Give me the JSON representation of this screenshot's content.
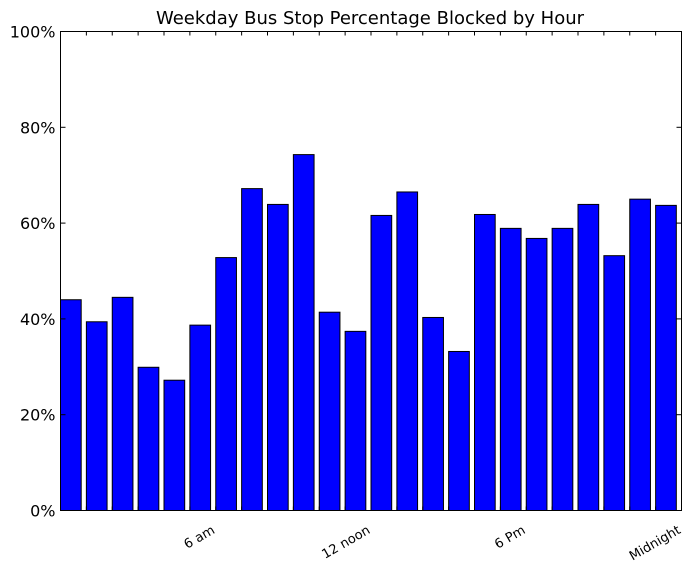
{
  "chart_data": {
    "type": "bar",
    "title": "Weekday Bus Stop Percentage Blocked by Hour",
    "xlabel": "",
    "ylabel": "",
    "hours": [
      0,
      1,
      2,
      3,
      4,
      5,
      6,
      7,
      8,
      9,
      10,
      11,
      12,
      13,
      14,
      15,
      16,
      17,
      18,
      19,
      20,
      21,
      22,
      23
    ],
    "values": [
      44,
      39.4,
      44.5,
      29.9,
      27.2,
      38.7,
      52.8,
      67.2,
      63.9,
      74.3,
      41.4,
      37.4,
      61.6,
      66.5,
      40.3,
      33.2,
      61.8,
      58.9,
      56.8,
      58.9,
      63.9,
      53.2,
      65,
      63.7
    ],
    "bar_color": "#0000ff",
    "xlim": [
      0,
      24
    ],
    "ylim": [
      0,
      100
    ],
    "yticks": [
      {
        "value": 0,
        "label": "0%"
      },
      {
        "value": 20,
        "label": "20%"
      },
      {
        "value": 40,
        "label": "40%"
      },
      {
        "value": 60,
        "label": "60%"
      },
      {
        "value": 80,
        "label": "80%"
      },
      {
        "value": 100,
        "label": "100%"
      }
    ],
    "xticks": [
      {
        "value": 6,
        "label": "6 am"
      },
      {
        "value": 12,
        "label": "12 noon"
      },
      {
        "value": 18,
        "label": "6 Pm"
      },
      {
        "value": 24,
        "label": "Midnight"
      }
    ],
    "grid": false,
    "legend": "none"
  }
}
